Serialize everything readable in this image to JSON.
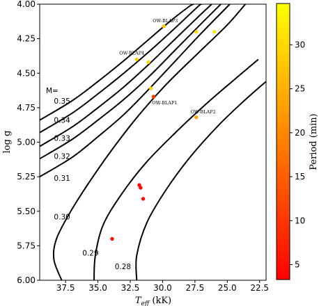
{
  "chart_data": {
    "type": "scatter",
    "xlabel": "T_eff (kK)",
    "ylabel": "log g",
    "xlim": [
      39.5,
      22.0
    ],
    "ylim": [
      6.0,
      4.0
    ],
    "x_ticks": [
      "37.5",
      "35.0",
      "32.5",
      "30.0",
      "27.5",
      "25.0",
      "22.5"
    ],
    "y_ticks": [
      "4.00",
      "4.25",
      "4.50",
      "4.75",
      "5.00",
      "5.25",
      "5.50",
      "5.75",
      "6.00"
    ],
    "x_tick_values": [
      37.5,
      35.0,
      32.5,
      30.0,
      27.5,
      25.0,
      22.5
    ],
    "y_tick_values": [
      4.0,
      4.25,
      4.5,
      4.75,
      5.0,
      5.25,
      5.5,
      5.75,
      6.0
    ],
    "grid": false,
    "mass_header": "M=",
    "mass_tracks": [
      {
        "label": "0.35",
        "points": [
          [
            39.5,
            4.84
          ],
          [
            37.0,
            4.7
          ],
          [
            35.0,
            4.56
          ],
          [
            33.0,
            4.41
          ],
          [
            31.0,
            4.25
          ],
          [
            29.5,
            4.13
          ],
          [
            28.0,
            4.02
          ],
          [
            27.6,
            4.0
          ]
        ]
      },
      {
        "label": "0.34",
        "points": [
          [
            39.5,
            4.93
          ],
          [
            37.0,
            4.79
          ],
          [
            35.0,
            4.65
          ],
          [
            33.0,
            4.5
          ],
          [
            31.0,
            4.34
          ],
          [
            29.0,
            4.17
          ],
          [
            27.3,
            4.02
          ],
          [
            27.0,
            4.0
          ]
        ]
      },
      {
        "label": "0.33",
        "points": [
          [
            39.5,
            5.03
          ],
          [
            37.0,
            4.89
          ],
          [
            35.0,
            4.75
          ],
          [
            33.0,
            4.6
          ],
          [
            31.0,
            4.43
          ],
          [
            29.0,
            4.25
          ],
          [
            27.0,
            4.07
          ],
          [
            26.2,
            4.0
          ]
        ]
      },
      {
        "label": "0.32",
        "points": [
          [
            39.5,
            5.12
          ],
          [
            37.0,
            4.98
          ],
          [
            35.0,
            4.84
          ],
          [
            33.0,
            4.69
          ],
          [
            31.0,
            4.52
          ],
          [
            29.0,
            4.33
          ],
          [
            27.0,
            4.14
          ],
          [
            25.5,
            4.0
          ]
        ]
      },
      {
        "label": "0.31",
        "points": [
          [
            39.5,
            5.25
          ],
          [
            37.0,
            5.11
          ],
          [
            35.0,
            4.96
          ],
          [
            33.0,
            4.8
          ],
          [
            31.0,
            4.61
          ],
          [
            29.0,
            4.41
          ],
          [
            27.0,
            4.21
          ],
          [
            24.8,
            4.0
          ]
        ]
      },
      {
        "label": "0.30",
        "points": [
          [
            37.8,
            6.0
          ],
          [
            38.4,
            5.85
          ],
          [
            38.2,
            5.7
          ],
          [
            37.1,
            5.5
          ],
          [
            35.6,
            5.28
          ],
          [
            33.8,
            5.04
          ],
          [
            31.8,
            4.8
          ],
          [
            29.6,
            4.57
          ],
          [
            27.2,
            4.35
          ],
          [
            25.0,
            4.15
          ],
          [
            23.6,
            4.0
          ]
        ]
      },
      {
        "label": "0.29",
        "points": [
          [
            35.3,
            6.0
          ],
          [
            35.2,
            5.82
          ],
          [
            34.6,
            5.6
          ],
          [
            33.2,
            5.38
          ],
          [
            31.3,
            5.15
          ],
          [
            29.0,
            4.93
          ],
          [
            26.6,
            4.72
          ],
          [
            24.5,
            4.55
          ],
          [
            22.6,
            4.4
          ]
        ]
      },
      {
        "label": "0.28",
        "points": [
          [
            32.0,
            6.0
          ],
          [
            32.0,
            5.82
          ],
          [
            31.2,
            5.58
          ],
          [
            29.7,
            5.34
          ],
          [
            27.8,
            5.1
          ],
          [
            25.7,
            4.88
          ],
          [
            23.7,
            4.7
          ],
          [
            22.0,
            4.56
          ]
        ]
      }
    ],
    "mass_label_positions": [
      [
        38.4,
        4.7
      ],
      [
        38.4,
        4.84
      ],
      [
        38.4,
        4.97
      ],
      [
        38.4,
        5.1
      ],
      [
        38.4,
        5.26
      ],
      [
        38.4,
        5.54
      ],
      [
        36.2,
        5.8
      ],
      [
        33.7,
        5.9
      ]
    ],
    "stars": [
      {
        "name": "OW-BLAP3",
        "teff": 29.9,
        "logg": 4.16,
        "period": 27.5
      },
      {
        "name": "",
        "teff": 27.4,
        "logg": 4.2,
        "period": 30.5
      },
      {
        "name": "",
        "teff": 26.0,
        "logg": 4.2,
        "period": 31.5
      },
      {
        "name": "OW-BLAP4",
        "teff": 32.0,
        "logg": 4.4,
        "period": 29.0
      },
      {
        "name": "",
        "teff": 31.1,
        "logg": 4.42,
        "period": 30.0
      },
      {
        "name": "",
        "teff": 30.9,
        "logg": 4.61,
        "period": 28.5
      },
      {
        "name": "OW-BLAP1",
        "teff": 30.7,
        "logg": 4.67,
        "period": 10.5
      },
      {
        "name": "OW-BLAP2",
        "teff": 27.4,
        "logg": 4.82,
        "period": 23.5
      },
      {
        "name": "",
        "teff": 31.8,
        "logg": 5.31,
        "period": 3.5
      },
      {
        "name": "",
        "teff": 31.7,
        "logg": 5.33,
        "period": 3.8
      },
      {
        "name": "",
        "teff": 31.5,
        "logg": 5.41,
        "period": 4.5
      },
      {
        "name": "",
        "teff": 33.9,
        "logg": 5.7,
        "period": 5.0
      }
    ],
    "colorbar": {
      "label": "Period (min)",
      "range": [
        3.3,
        34.7
      ],
      "ticks": [
        "5",
        "10",
        "15",
        "20",
        "25",
        "30"
      ],
      "tick_values": [
        5,
        10,
        15,
        20,
        25,
        30
      ],
      "colormap": [
        "#ff0000",
        "#ffff00"
      ]
    }
  }
}
